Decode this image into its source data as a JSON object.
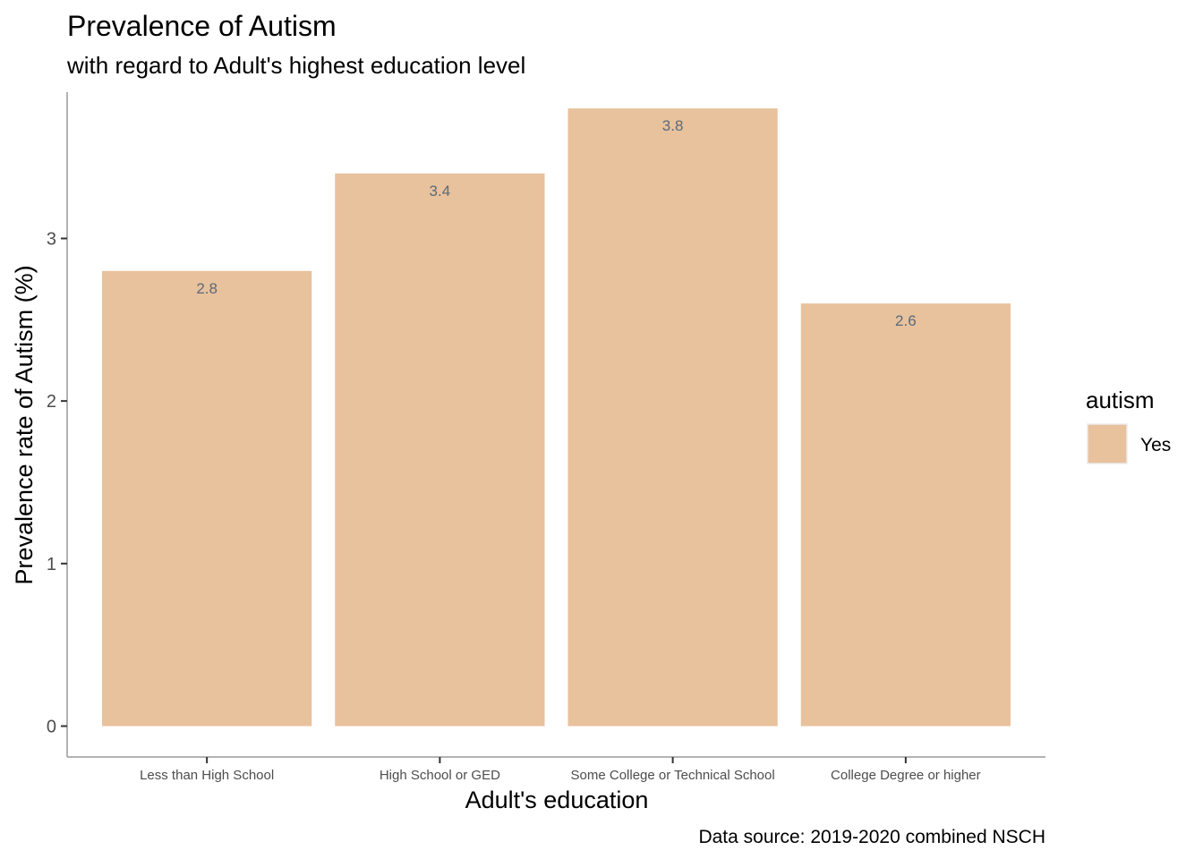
{
  "chart_data": {
    "type": "bar",
    "title": "Prevalence of Autism",
    "subtitle": "with regard to Adult's highest education level",
    "xlabel": "Adult's education",
    "ylabel": "Prevalence rate of Autism (%)",
    "caption": "Data source: 2019-2020 combined NSCH",
    "categories": [
      "Less than High School",
      "High School or GED",
      "Some College or Technical School",
      "College Degree or higher"
    ],
    "series": [
      {
        "name": "Yes",
        "values": [
          2.8,
          3.4,
          3.8,
          2.6
        ],
        "labels": [
          "2.8",
          "3.4",
          "3.8",
          "2.6"
        ],
        "color": "#e8c19d"
      }
    ],
    "ylim": [
      -0.19,
      3.9
    ],
    "yticks": [
      0,
      1,
      2,
      3
    ],
    "ytick_labels": [
      "0",
      "1",
      "2",
      "3"
    ],
    "grid": false,
    "legend": {
      "title": "autism",
      "position": "right",
      "entries": [
        "Yes"
      ]
    },
    "colors": {
      "bar": "#e8c19d",
      "axis": "#b3b3b3",
      "tick": "#333333",
      "data_label": "#5a6a7a"
    }
  }
}
